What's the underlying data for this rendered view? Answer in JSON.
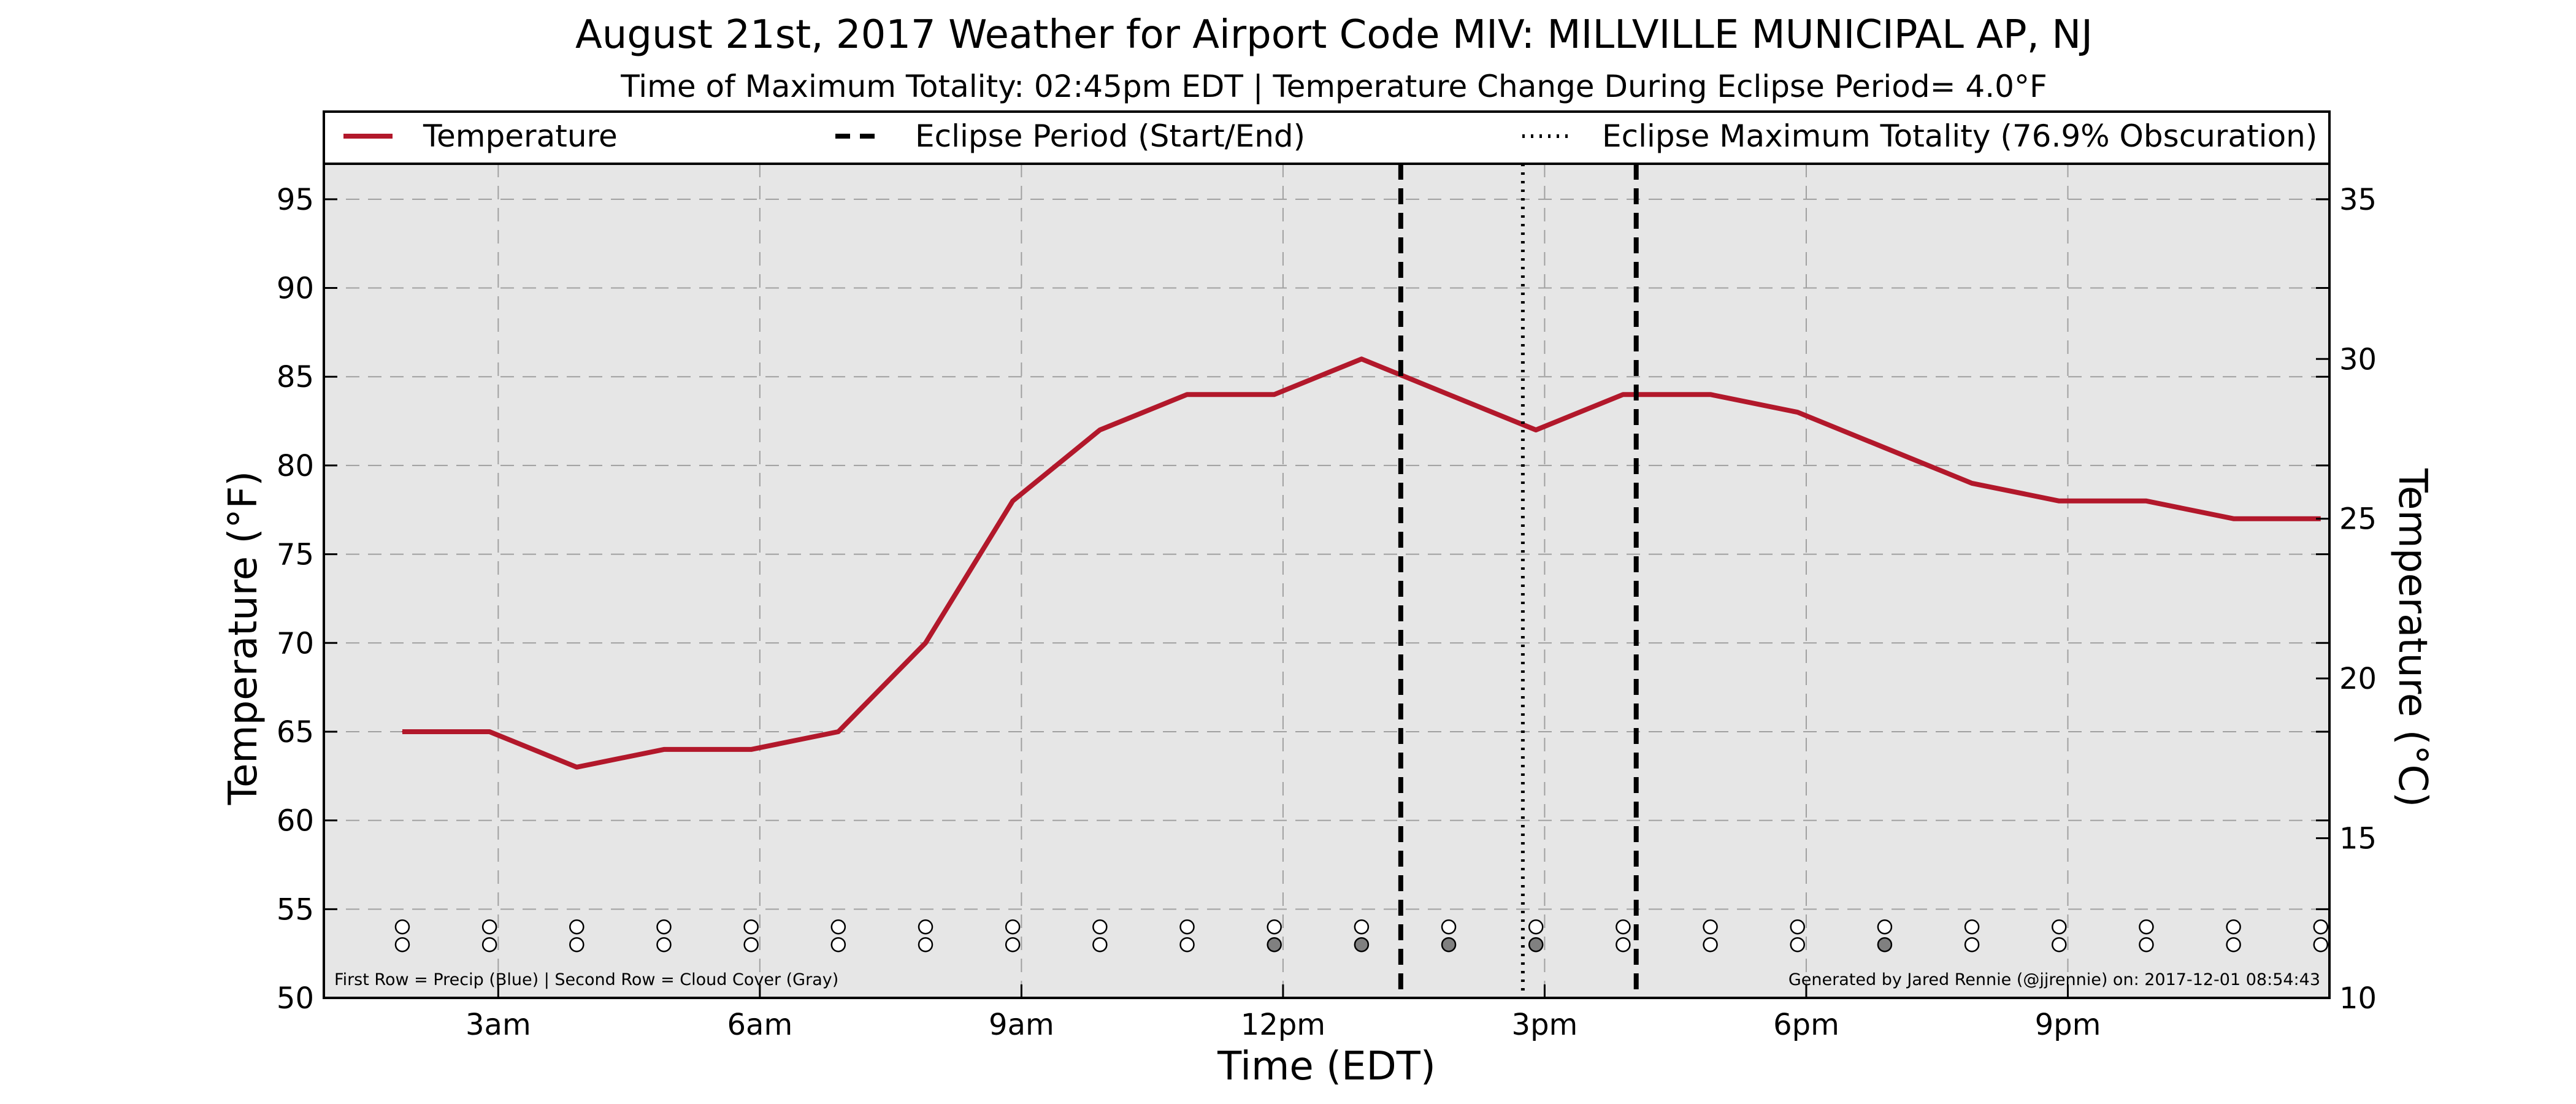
{
  "chart_data": {
    "type": "line",
    "title": "August 21st, 2017 Weather for Airport Code MIV: MILLVILLE MUNICIPAL AP, NJ",
    "subtitle": "Time of Maximum Totality: 02:45pm EDT | Temperature Change During Eclipse Period= 4.0°F",
    "xlabel": "Time (EDT)",
    "ylabel": "Temperature (°F)",
    "ylabel_right": "Temperature (°C)",
    "x_tick_labels": [
      "3am",
      "6am",
      "9am",
      "12pm",
      "3pm",
      "6pm",
      "9pm"
    ],
    "x_ticks_hours": [
      3,
      6,
      9,
      12,
      15,
      18,
      21
    ],
    "xlim_hours": [
      1.0,
      24.0
    ],
    "ylim": [
      50,
      97
    ],
    "yticks": [
      50,
      55,
      60,
      65,
      70,
      75,
      80,
      85,
      90,
      95
    ],
    "ylim_right": [
      10,
      36.11
    ],
    "yticks_right": [
      10,
      15,
      20,
      25,
      30,
      35
    ],
    "grid": true,
    "legend_position": "top",
    "series": [
      {
        "name": "Temperature",
        "color": "#b2182b",
        "x_hours": [
          1.9,
          2.9,
          3.9,
          4.9,
          5.9,
          6.9,
          7.9,
          8.9,
          9.9,
          10.9,
          11.9,
          12.9,
          13.9,
          14.9,
          15.9,
          16.9,
          17.9,
          18.9,
          19.9,
          20.9,
          21.9,
          22.9,
          23.9
        ],
        "values": [
          65,
          65,
          63,
          64,
          64,
          65,
          70,
          78,
          82,
          84,
          84,
          86,
          84,
          82,
          84,
          84,
          83,
          81,
          79,
          78,
          78,
          77,
          77
        ]
      }
    ],
    "eclipse_period": {
      "label": "Eclipse Period (Start/End)",
      "start_hour": 13.35,
      "end_hour": 16.05,
      "style": "dashed",
      "color": "#000000"
    },
    "eclipse_max": {
      "label": "Eclipse Maximum Totality (76.9% Obscuration)",
      "hour": 14.75,
      "style": "dotted",
      "color": "#000000"
    },
    "markers": {
      "precip_y": 54,
      "cloud_y": 53,
      "precip_color": "#ffffff",
      "cloud_clear_color": "#ffffff",
      "cloud_cover_color": "#808080",
      "cloud_covered": [
        false,
        false,
        false,
        false,
        false,
        false,
        false,
        false,
        false,
        false,
        true,
        true,
        true,
        true,
        false,
        false,
        false,
        true,
        false,
        false,
        false,
        false,
        false
      ]
    },
    "annotation_left": "First Row = Precip (Blue) | Second Row = Cloud Cover (Gray)",
    "annotation_right": "Generated by Jared Rennie (@jjrennie) on: 2017-12-01 08:54:43",
    "background_color": "#e6e6e6"
  }
}
